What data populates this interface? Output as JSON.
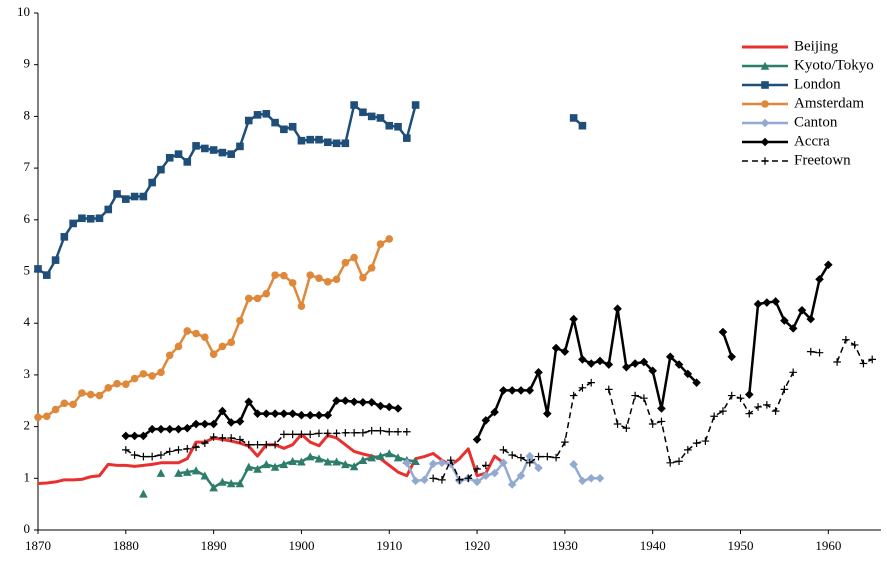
{
  "chart_data": {
    "type": "line",
    "x": [
      1870,
      1871,
      1872,
      1873,
      1874,
      1875,
      1876,
      1877,
      1878,
      1879,
      1880,
      1881,
      1882,
      1883,
      1884,
      1885,
      1886,
      1887,
      1888,
      1889,
      1890,
      1891,
      1892,
      1893,
      1894,
      1895,
      1896,
      1897,
      1898,
      1899,
      1900,
      1901,
      1902,
      1903,
      1904,
      1905,
      1906,
      1907,
      1908,
      1909,
      1910,
      1911,
      1912,
      1913,
      1914,
      1915,
      1916,
      1917,
      1918,
      1919,
      1920,
      1921,
      1922,
      1923,
      1924,
      1925,
      1926,
      1927,
      1928,
      1929,
      1930,
      1931,
      1932,
      1933,
      1934,
      1935,
      1936,
      1937,
      1938,
      1939,
      1940,
      1941,
      1942,
      1943,
      1944,
      1945,
      1946,
      1947,
      1948,
      1949,
      1950,
      1951,
      1952,
      1953,
      1954,
      1955,
      1956,
      1957,
      1958,
      1959,
      1960,
      1961,
      1962,
      1963,
      1964,
      1965
    ],
    "series": [
      {
        "name": "Beijing",
        "color": "#e8312f",
        "marker": "none",
        "dash": false,
        "width": 3,
        "values": [
          0.9,
          0.91,
          0.93,
          0.97,
          0.97,
          0.98,
          1.03,
          1.05,
          1.27,
          1.25,
          1.25,
          1.23,
          1.25,
          1.27,
          1.3,
          1.3,
          1.3,
          1.38,
          1.7,
          1.7,
          1.78,
          1.75,
          1.72,
          1.68,
          1.62,
          1.43,
          1.65,
          1.65,
          1.58,
          1.65,
          1.85,
          1.7,
          1.63,
          1.83,
          1.78,
          1.65,
          1.52,
          1.47,
          1.43,
          1.38,
          1.25,
          1.12,
          1.05,
          1.38,
          1.42,
          1.48,
          1.35,
          1.25,
          1.38,
          1.57,
          1.05,
          1.1,
          1.43,
          1.3,
          null,
          null,
          null,
          null,
          null,
          null,
          null,
          null,
          null,
          null,
          null,
          null,
          null,
          null,
          null,
          null,
          null,
          null,
          null,
          null,
          null,
          null,
          null,
          null,
          null,
          null,
          null,
          null,
          null,
          null,
          null,
          null,
          null,
          null,
          null,
          null,
          null,
          null,
          null,
          null,
          null,
          null
        ]
      },
      {
        "name": "Kyoto/Tokyo",
        "color": "#2e7d6b",
        "marker": "triangle",
        "dash": false,
        "width": 2.5,
        "values": [
          null,
          null,
          null,
          null,
          null,
          null,
          null,
          null,
          null,
          null,
          null,
          null,
          0.7,
          null,
          1.1,
          null,
          1.1,
          1.12,
          1.15,
          1.05,
          0.82,
          0.93,
          0.9,
          0.9,
          1.22,
          1.18,
          1.27,
          1.22,
          1.27,
          1.33,
          1.32,
          1.42,
          1.38,
          1.32,
          1.32,
          1.27,
          1.23,
          1.35,
          1.4,
          1.43,
          1.48,
          1.4,
          1.35,
          1.33,
          null,
          null,
          null,
          null,
          null,
          null,
          null,
          null,
          null,
          null,
          null,
          null,
          null,
          null,
          null,
          null,
          null,
          null,
          null,
          null,
          null,
          null,
          null,
          null,
          null,
          null,
          null,
          null,
          null,
          null,
          null,
          null,
          null,
          null,
          null,
          null,
          null,
          null,
          null,
          null,
          null,
          null,
          null,
          null,
          null,
          null,
          null,
          null,
          null,
          null,
          null,
          null
        ]
      },
      {
        "name": "London",
        "color": "#1f4e79",
        "marker": "square",
        "dash": false,
        "width": 2.5,
        "values": [
          5.05,
          4.93,
          5.22,
          5.67,
          5.93,
          6.03,
          6.02,
          6.03,
          6.2,
          6.5,
          6.4,
          6.45,
          6.45,
          6.72,
          6.97,
          7.2,
          7.27,
          7.12,
          7.43,
          7.38,
          7.35,
          7.3,
          7.27,
          7.42,
          7.92,
          8.03,
          8.05,
          7.88,
          7.75,
          7.8,
          7.53,
          7.55,
          7.55,
          7.5,
          7.48,
          7.48,
          8.22,
          8.08,
          8.0,
          7.97,
          7.82,
          7.8,
          7.58,
          8.22,
          null,
          null,
          null,
          null,
          null,
          null,
          null,
          null,
          null,
          null,
          null,
          null,
          null,
          null,
          null,
          null,
          null,
          7.97,
          7.82,
          null,
          null,
          null,
          null,
          null,
          null,
          null,
          null,
          null,
          null,
          null,
          null,
          null,
          null,
          null,
          null,
          null,
          null,
          null,
          null,
          null,
          null,
          null,
          null,
          null,
          null,
          null,
          null,
          null,
          null,
          null,
          null,
          null
        ]
      },
      {
        "name": "Amsterdam",
        "color": "#e0883a",
        "marker": "circle",
        "dash": false,
        "width": 2.5,
        "values": [
          2.18,
          2.2,
          2.33,
          2.45,
          2.43,
          2.65,
          2.62,
          2.6,
          2.75,
          2.83,
          2.82,
          2.93,
          3.02,
          2.98,
          3.05,
          3.38,
          3.55,
          3.85,
          3.8,
          3.73,
          3.4,
          3.55,
          3.63,
          4.05,
          4.48,
          4.48,
          4.57,
          4.93,
          4.92,
          4.78,
          4.33,
          4.93,
          4.87,
          4.8,
          4.85,
          5.17,
          5.27,
          4.88,
          5.07,
          5.53,
          5.63,
          null,
          null,
          null,
          null,
          null,
          null,
          null,
          null,
          null,
          null,
          null,
          null,
          null,
          null,
          null,
          null,
          null,
          null,
          null,
          null,
          null,
          null,
          null,
          null,
          null,
          null,
          null,
          null,
          null,
          null,
          null,
          null,
          null,
          null,
          null,
          null,
          null,
          null,
          null,
          null,
          null,
          null,
          null,
          null,
          null,
          null,
          null,
          null,
          null,
          null,
          null,
          null,
          null,
          null,
          null
        ]
      },
      {
        "name": "Canton",
        "color": "#93aad0",
        "marker": "diamond",
        "dash": false,
        "width": 2.5,
        "values": [
          null,
          null,
          null,
          null,
          null,
          null,
          null,
          null,
          null,
          null,
          null,
          null,
          null,
          null,
          null,
          null,
          null,
          null,
          null,
          null,
          null,
          null,
          null,
          null,
          null,
          null,
          null,
          null,
          null,
          null,
          null,
          null,
          null,
          null,
          null,
          null,
          null,
          null,
          null,
          null,
          null,
          null,
          1.3,
          0.95,
          0.97,
          1.28,
          1.3,
          1.28,
          0.95,
          1.0,
          0.93,
          1.05,
          1.1,
          1.3,
          0.88,
          1.05,
          1.43,
          1.2,
          null,
          null,
          null,
          1.27,
          0.95,
          1.0,
          1.0,
          null,
          null,
          null,
          null,
          null,
          null,
          null,
          null,
          null,
          null,
          null,
          null,
          null,
          null,
          null,
          null,
          null,
          null,
          null,
          null,
          null,
          null,
          null,
          null,
          null,
          null,
          null,
          null,
          null,
          null,
          null
        ]
      },
      {
        "name": "Accra",
        "color": "#000000",
        "marker": "diamond",
        "dash": false,
        "width": 2.5,
        "values": [
          null,
          null,
          null,
          null,
          null,
          null,
          null,
          null,
          null,
          null,
          1.82,
          1.82,
          1.82,
          1.95,
          1.95,
          1.95,
          1.95,
          1.97,
          2.05,
          2.05,
          2.05,
          2.3,
          2.08,
          2.1,
          2.48,
          2.25,
          2.25,
          2.25,
          2.25,
          2.25,
          2.22,
          2.22,
          2.22,
          2.22,
          2.5,
          2.5,
          2.48,
          2.47,
          2.47,
          2.4,
          2.38,
          2.35,
          null,
          null,
          null,
          null,
          null,
          null,
          null,
          null,
          1.75,
          2.12,
          2.28,
          2.7,
          2.7,
          2.7,
          2.7,
          3.05,
          2.25,
          3.52,
          3.45,
          4.08,
          3.3,
          3.22,
          3.27,
          3.2,
          4.28,
          3.15,
          3.22,
          3.25,
          3.08,
          2.35,
          3.35,
          3.2,
          3.02,
          2.85,
          null,
          null,
          3.83,
          3.35,
          null,
          2.62,
          4.37,
          4.4,
          4.42,
          4.05,
          3.9,
          4.25,
          4.08,
          4.85,
          5.13,
          null,
          null,
          null,
          null,
          null
        ]
      },
      {
        "name": "Freetown",
        "color": "#000000",
        "marker": "plus",
        "dash": true,
        "width": 1.5,
        "values": [
          null,
          null,
          null,
          null,
          null,
          null,
          null,
          null,
          null,
          null,
          1.55,
          1.45,
          1.42,
          1.42,
          1.45,
          1.52,
          1.55,
          1.57,
          1.6,
          1.68,
          1.8,
          1.78,
          1.78,
          1.75,
          1.65,
          1.65,
          1.65,
          1.65,
          1.85,
          1.85,
          1.85,
          1.85,
          1.87,
          1.87,
          1.87,
          1.88,
          1.88,
          1.88,
          1.92,
          1.92,
          1.9,
          1.9,
          1.9,
          null,
          null,
          1.0,
          0.97,
          1.35,
          0.97,
          1.0,
          1.18,
          1.25,
          null,
          1.55,
          1.45,
          1.4,
          1.3,
          1.42,
          1.42,
          1.4,
          1.7,
          2.6,
          2.75,
          2.85,
          null,
          2.72,
          2.05,
          1.97,
          2.6,
          2.55,
          2.05,
          2.1,
          1.3,
          1.33,
          1.55,
          1.68,
          1.72,
          2.2,
          2.3,
          2.6,
          2.55,
          2.25,
          2.38,
          2.42,
          2.3,
          2.72,
          3.05,
          null,
          3.45,
          3.43,
          null,
          3.25,
          3.68,
          3.58,
          3.22,
          3.3
        ]
      }
    ],
    "xlim": [
      1870,
      1966
    ],
    "xticks": [
      1870,
      1880,
      1890,
      1900,
      1910,
      1920,
      1930,
      1940,
      1950,
      1960
    ],
    "ylim": [
      0,
      10
    ],
    "yticks": [
      0,
      1,
      2,
      3,
      4,
      5,
      6,
      7,
      8,
      9,
      10
    ],
    "grid": false,
    "legend": "top-right"
  }
}
